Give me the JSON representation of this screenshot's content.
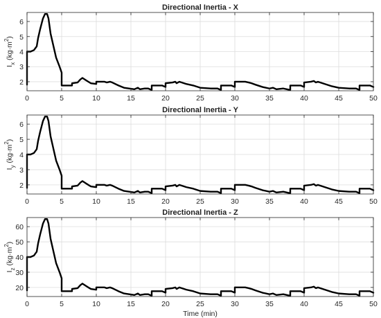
{
  "chart_data": [
    {
      "type": "line",
      "title": "Directional Inertia - X",
      "xlabel": "",
      "ylabel": {
        "base": "I",
        "sub": "x",
        "unit_pre": " (kg·m",
        "sup": "2",
        "unit_post": ")"
      },
      "xlim": [
        0,
        50
      ],
      "ylim": [
        1.4,
        6.6
      ],
      "xticks": [
        0,
        5,
        10,
        15,
        20,
        25,
        30,
        35,
        40,
        45,
        50
      ],
      "yticks": [
        2,
        3,
        4,
        5,
        6
      ],
      "grid": true,
      "color": "#000000",
      "points": [
        [
          0,
          1.8
        ],
        [
          0,
          4.0
        ],
        [
          0.5,
          4.0
        ],
        [
          1.0,
          4.1
        ],
        [
          1.4,
          4.35
        ],
        [
          1.6,
          4.9
        ],
        [
          1.9,
          5.5
        ],
        [
          2.3,
          6.2
        ],
        [
          2.6,
          6.5
        ],
        [
          2.9,
          6.5
        ],
        [
          3.1,
          6.2
        ],
        [
          3.4,
          5.2
        ],
        [
          3.8,
          4.4
        ],
        [
          4.2,
          3.6
        ],
        [
          4.7,
          3.0
        ],
        [
          5.0,
          2.6
        ],
        [
          5.0,
          1.75
        ],
        [
          6.5,
          1.75
        ],
        [
          6.5,
          1.9
        ],
        [
          7.3,
          1.95
        ],
        [
          7.7,
          2.15
        ],
        [
          8.0,
          2.25
        ],
        [
          8.5,
          2.1
        ],
        [
          9.2,
          1.9
        ],
        [
          10.0,
          1.85
        ],
        [
          10.0,
          2.0
        ],
        [
          11.2,
          2.0
        ],
        [
          11.5,
          1.95
        ],
        [
          12.0,
          2.0
        ],
        [
          12.3,
          1.95
        ],
        [
          13.2,
          1.75
        ],
        [
          14.0,
          1.6
        ],
        [
          15.5,
          1.5
        ],
        [
          16.0,
          1.6
        ],
        [
          16.3,
          1.5
        ],
        [
          17.0,
          1.55
        ],
        [
          17.5,
          1.55
        ],
        [
          18.0,
          1.45
        ],
        [
          18.0,
          1.75
        ],
        [
          19.5,
          1.75
        ],
        [
          20.0,
          1.65
        ],
        [
          20.0,
          1.9
        ],
        [
          21.0,
          1.95
        ],
        [
          21.4,
          2.0
        ],
        [
          21.6,
          1.9
        ],
        [
          22.0,
          2.0
        ],
        [
          23.0,
          1.85
        ],
        [
          24.0,
          1.75
        ],
        [
          25.0,
          1.6
        ],
        [
          26.5,
          1.55
        ],
        [
          27.5,
          1.55
        ],
        [
          28.0,
          1.45
        ],
        [
          28.0,
          1.75
        ],
        [
          29.5,
          1.75
        ],
        [
          30.0,
          1.65
        ],
        [
          30.0,
          2.0
        ],
        [
          31.5,
          2.0
        ],
        [
          32.0,
          1.95
        ],
        [
          32.4,
          1.9
        ],
        [
          33.0,
          1.8
        ],
        [
          34.0,
          1.65
        ],
        [
          35.0,
          1.55
        ],
        [
          35.5,
          1.6
        ],
        [
          36.0,
          1.5
        ],
        [
          37.0,
          1.55
        ],
        [
          37.5,
          1.5
        ],
        [
          38.0,
          1.45
        ],
        [
          38.0,
          1.75
        ],
        [
          39.5,
          1.75
        ],
        [
          40.0,
          1.65
        ],
        [
          40.0,
          1.95
        ],
        [
          41.0,
          2.0
        ],
        [
          41.4,
          2.05
        ],
        [
          41.7,
          1.95
        ],
        [
          42.0,
          2.0
        ],
        [
          43.0,
          1.85
        ],
        [
          44.0,
          1.7
        ],
        [
          45.0,
          1.6
        ],
        [
          46.5,
          1.55
        ],
        [
          47.5,
          1.55
        ],
        [
          48.0,
          1.45
        ],
        [
          48.0,
          1.75
        ],
        [
          49.5,
          1.75
        ],
        [
          50.0,
          1.65
        ]
      ]
    },
    {
      "type": "line",
      "title": "Directional Inertia - Y",
      "xlabel": "",
      "ylabel": {
        "base": "I",
        "sub": "y",
        "unit_pre": " (kg·m",
        "sup": "2",
        "unit_post": ")"
      },
      "xlim": [
        0,
        50
      ],
      "ylim": [
        1.4,
        6.6
      ],
      "xticks": [
        0,
        5,
        10,
        15,
        20,
        25,
        30,
        35,
        40,
        45,
        50
      ],
      "yticks": [
        2,
        3,
        4,
        5,
        6
      ],
      "grid": true,
      "color": "#000000",
      "points": [
        [
          0,
          1.8
        ],
        [
          0,
          4.0
        ],
        [
          0.5,
          4.0
        ],
        [
          1.0,
          4.1
        ],
        [
          1.4,
          4.35
        ],
        [
          1.6,
          4.9
        ],
        [
          1.9,
          5.5
        ],
        [
          2.3,
          6.2
        ],
        [
          2.6,
          6.5
        ],
        [
          2.9,
          6.5
        ],
        [
          3.1,
          6.2
        ],
        [
          3.4,
          5.2
        ],
        [
          3.8,
          4.4
        ],
        [
          4.2,
          3.6
        ],
        [
          4.7,
          3.0
        ],
        [
          5.0,
          2.6
        ],
        [
          5.0,
          1.75
        ],
        [
          6.5,
          1.75
        ],
        [
          6.5,
          1.9
        ],
        [
          7.3,
          1.95
        ],
        [
          7.7,
          2.15
        ],
        [
          8.0,
          2.25
        ],
        [
          8.5,
          2.1
        ],
        [
          9.2,
          1.9
        ],
        [
          10.0,
          1.85
        ],
        [
          10.0,
          2.0
        ],
        [
          11.2,
          2.0
        ],
        [
          11.5,
          1.95
        ],
        [
          12.0,
          2.0
        ],
        [
          12.3,
          1.95
        ],
        [
          13.2,
          1.75
        ],
        [
          14.0,
          1.6
        ],
        [
          15.5,
          1.5
        ],
        [
          16.0,
          1.6
        ],
        [
          16.3,
          1.5
        ],
        [
          17.0,
          1.55
        ],
        [
          17.5,
          1.55
        ],
        [
          18.0,
          1.45
        ],
        [
          18.0,
          1.75
        ],
        [
          19.5,
          1.75
        ],
        [
          20.0,
          1.65
        ],
        [
          20.0,
          1.9
        ],
        [
          21.0,
          1.95
        ],
        [
          21.4,
          2.0
        ],
        [
          21.6,
          1.9
        ],
        [
          22.0,
          2.0
        ],
        [
          23.0,
          1.85
        ],
        [
          24.0,
          1.75
        ],
        [
          25.0,
          1.6
        ],
        [
          26.5,
          1.55
        ],
        [
          27.5,
          1.55
        ],
        [
          28.0,
          1.45
        ],
        [
          28.0,
          1.75
        ],
        [
          29.5,
          1.75
        ],
        [
          30.0,
          1.65
        ],
        [
          30.0,
          2.0
        ],
        [
          31.5,
          2.0
        ],
        [
          32.0,
          1.95
        ],
        [
          32.4,
          1.9
        ],
        [
          33.0,
          1.8
        ],
        [
          34.0,
          1.65
        ],
        [
          35.0,
          1.55
        ],
        [
          35.5,
          1.6
        ],
        [
          36.0,
          1.5
        ],
        [
          37.0,
          1.55
        ],
        [
          37.5,
          1.5
        ],
        [
          38.0,
          1.45
        ],
        [
          38.0,
          1.75
        ],
        [
          39.5,
          1.75
        ],
        [
          40.0,
          1.65
        ],
        [
          40.0,
          1.95
        ],
        [
          41.0,
          2.0
        ],
        [
          41.4,
          2.05
        ],
        [
          41.7,
          1.95
        ],
        [
          42.0,
          2.0
        ],
        [
          43.0,
          1.85
        ],
        [
          44.0,
          1.7
        ],
        [
          45.0,
          1.6
        ],
        [
          46.5,
          1.55
        ],
        [
          47.5,
          1.55
        ],
        [
          48.0,
          1.45
        ],
        [
          48.0,
          1.75
        ],
        [
          49.5,
          1.75
        ],
        [
          50.0,
          1.65
        ]
      ]
    },
    {
      "type": "line",
      "title": "Directional Inertia - Z",
      "xlabel": "Time (min)",
      "ylabel": {
        "base": "I",
        "sub": "z",
        "unit_pre": " (kg·m",
        "sup": "2",
        "unit_post": ")"
      },
      "xlim": [
        0,
        50
      ],
      "ylim": [
        14,
        66
      ],
      "xticks": [
        0,
        5,
        10,
        15,
        20,
        25,
        30,
        35,
        40,
        45,
        50
      ],
      "yticks": [
        20,
        30,
        40,
        50,
        60
      ],
      "grid": true,
      "color": "#000000",
      "points": [
        [
          0,
          18
        ],
        [
          0,
          40
        ],
        [
          0.5,
          40
        ],
        [
          1.0,
          41
        ],
        [
          1.4,
          43.5
        ],
        [
          1.6,
          49
        ],
        [
          1.9,
          55
        ],
        [
          2.3,
          62
        ],
        [
          2.6,
          65
        ],
        [
          2.9,
          65
        ],
        [
          3.1,
          62
        ],
        [
          3.4,
          52
        ],
        [
          3.8,
          44
        ],
        [
          4.2,
          36
        ],
        [
          4.7,
          30
        ],
        [
          5.0,
          26
        ],
        [
          5.0,
          17.5
        ],
        [
          6.5,
          17.5
        ],
        [
          6.5,
          19
        ],
        [
          7.3,
          19.5
        ],
        [
          7.7,
          21.5
        ],
        [
          8.0,
          22.5
        ],
        [
          8.5,
          21
        ],
        [
          9.2,
          19
        ],
        [
          10.0,
          18.5
        ],
        [
          10.0,
          20
        ],
        [
          11.2,
          20
        ],
        [
          11.5,
          19.5
        ],
        [
          12.0,
          20
        ],
        [
          12.3,
          19.5
        ],
        [
          13.2,
          17.5
        ],
        [
          14.0,
          16
        ],
        [
          15.5,
          15
        ],
        [
          16.0,
          16
        ],
        [
          16.3,
          15
        ],
        [
          17.0,
          15.5
        ],
        [
          17.5,
          15.5
        ],
        [
          18.0,
          14.5
        ],
        [
          18.0,
          17.5
        ],
        [
          19.5,
          17.5
        ],
        [
          20.0,
          16.5
        ],
        [
          20.0,
          19
        ],
        [
          21.0,
          19.5
        ],
        [
          21.4,
          20
        ],
        [
          21.6,
          19
        ],
        [
          22.0,
          20
        ],
        [
          23.0,
          18.5
        ],
        [
          24.0,
          17.5
        ],
        [
          25.0,
          16
        ],
        [
          26.5,
          15.5
        ],
        [
          27.5,
          15.5
        ],
        [
          28.0,
          14.5
        ],
        [
          28.0,
          17.5
        ],
        [
          29.5,
          17.5
        ],
        [
          30.0,
          16.5
        ],
        [
          30.0,
          20
        ],
        [
          31.5,
          20
        ],
        [
          32.0,
          19.5
        ],
        [
          32.4,
          19
        ],
        [
          33.0,
          18
        ],
        [
          34.0,
          16.5
        ],
        [
          35.0,
          15.5
        ],
        [
          35.5,
          16
        ],
        [
          36.0,
          15
        ],
        [
          37.0,
          15.5
        ],
        [
          37.5,
          15
        ],
        [
          38.0,
          14.5
        ],
        [
          38.0,
          17.5
        ],
        [
          39.5,
          17.5
        ],
        [
          40.0,
          16.5
        ],
        [
          40.0,
          19.5
        ],
        [
          41.0,
          20
        ],
        [
          41.4,
          20.5
        ],
        [
          41.7,
          19.5
        ],
        [
          42.0,
          20
        ],
        [
          43.0,
          18.5
        ],
        [
          44.0,
          17
        ],
        [
          45.0,
          16
        ],
        [
          46.5,
          15.5
        ],
        [
          47.5,
          15.5
        ],
        [
          48.0,
          14.5
        ],
        [
          48.0,
          17.5
        ],
        [
          49.5,
          17.5
        ],
        [
          50.0,
          16.5
        ]
      ]
    }
  ]
}
